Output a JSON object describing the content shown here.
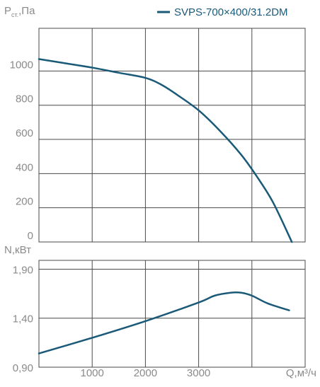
{
  "chart_data": [
    {
      "type": "line",
      "ylabel_main": "P",
      "ylabel_sub": "ст.",
      "ylabel_unit": ",Па",
      "xlim": [
        0,
        5000
      ],
      "ylim": [
        0,
        1250
      ],
      "grid": true,
      "legend_position": "top-right",
      "y_ticks": [
        0,
        200,
        400,
        600,
        800,
        1000
      ],
      "y_tick_labels": [
        "0",
        "200",
        "400",
        "600",
        "800",
        "1000"
      ],
      "series": [
        {
          "name": "SVPS-700×400/31.2DM",
          "color": "#1a5a78",
          "x": [
            0,
            500,
            1000,
            1500,
            2000,
            2300,
            2600,
            3000,
            3400,
            3800,
            4100,
            4400,
            4750
          ],
          "values": [
            1070,
            1045,
            1020,
            990,
            960,
            920,
            860,
            770,
            650,
            510,
            380,
            230,
            0
          ]
        }
      ]
    },
    {
      "type": "line",
      "ylabel": "N,кВт",
      "xlabel": "Q,м³/ч",
      "xlim": [
        0,
        5000
      ],
      "ylim": [
        0.9,
        1.99
      ],
      "grid": true,
      "y_ticks": [
        0.9,
        1.4,
        1.9
      ],
      "y_tick_labels": [
        "0,90",
        "1,40",
        "1,90"
      ],
      "x_ticks": [
        1000,
        2000,
        3000
      ],
      "x_tick_labels": [
        "1000",
        "2000",
        "3000"
      ],
      "series": [
        {
          "name": "SVPS-700×400/31.2DM",
          "color": "#1a5a78",
          "x": [
            0,
            1000,
            2000,
            3000,
            3300,
            3600,
            3800,
            4000,
            4300,
            4700
          ],
          "values": [
            1.04,
            1.2,
            1.37,
            1.56,
            1.63,
            1.66,
            1.66,
            1.63,
            1.55,
            1.48
          ]
        }
      ]
    }
  ]
}
